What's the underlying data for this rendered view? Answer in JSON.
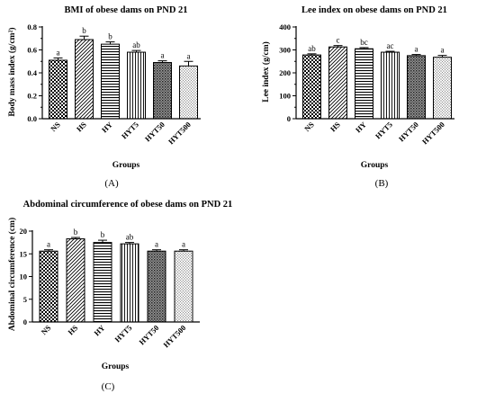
{
  "panels": [
    {
      "panel_label": "(A)"
    },
    {
      "panel_label": "(B)"
    },
    {
      "panel_label": "(C)"
    }
  ],
  "chart_data": [
    {
      "type": "bar",
      "title": "BMI of obese dams on PND 21",
      "xlabel": "Groups",
      "ylabel": "Body mass index (g/cm²)",
      "categories": [
        "NS",
        "HS",
        "HY",
        "HYT5",
        "HYT50",
        "HYT500"
      ],
      "values": [
        0.51,
        0.69,
        0.65,
        0.58,
        0.49,
        0.46
      ],
      "errors": [
        0.02,
        0.03,
        0.02,
        0.015,
        0.015,
        0.04
      ],
      "significance": [
        "a",
        "b",
        "b",
        "ab",
        "a",
        "a"
      ],
      "patterns": [
        "checker",
        "diagonal",
        "horizontal",
        "vertical",
        "grid",
        "dots"
      ],
      "ylim": [
        0,
        0.8
      ],
      "yticks": [
        0.0,
        0.2,
        0.4,
        0.6,
        0.8
      ],
      "ytick_labels": [
        "0.0",
        "0.2",
        "0.4",
        "0.6",
        "0.8"
      ],
      "ytick_minor": true
    },
    {
      "type": "bar",
      "title": "Lee index on obese dams on PND 21",
      "xlabel": "Groups",
      "ylabel": "Lee index (g/cm)",
      "categories": [
        "NS",
        "HS",
        "HY",
        "HYT5",
        "HYT50",
        "HYT500"
      ],
      "values": [
        278,
        313,
        305,
        290,
        275,
        268
      ],
      "errors": [
        5,
        6,
        5,
        4,
        5,
        8
      ],
      "significance": [
        "ab",
        "c",
        "bc",
        "ac",
        "a",
        "a"
      ],
      "patterns": [
        "checker",
        "diagonal",
        "horizontal",
        "vertical",
        "grid",
        "dots"
      ],
      "ylim": [
        0,
        400
      ],
      "yticks": [
        0,
        100,
        200,
        300,
        400
      ],
      "ytick_labels": [
        "0",
        "100",
        "200",
        "300",
        "400"
      ],
      "ytick_minor": true
    },
    {
      "type": "bar",
      "title": "Abdominal circumference of obese dams on PND 21",
      "xlabel": "Groups",
      "ylabel": "Abdominal circumference (cm)",
      "categories": [
        "NS",
        "HS",
        "HY",
        "HYT5",
        "HYT50",
        "HYT500"
      ],
      "values": [
        15.6,
        18.3,
        17.5,
        17.2,
        15.6,
        15.6
      ],
      "errors": [
        0.3,
        0.3,
        0.5,
        0.3,
        0.3,
        0.3
      ],
      "significance": [
        "a",
        "b",
        "b",
        "ab",
        "a",
        "a"
      ],
      "patterns": [
        "checker",
        "diagonal",
        "horizontal",
        "vertical",
        "grid",
        "dots"
      ],
      "ylim": [
        0,
        20
      ],
      "yticks": [
        0,
        5,
        10,
        15,
        20
      ],
      "ytick_labels": [
        "0",
        "5",
        "10",
        "15",
        "20"
      ],
      "ytick_minor": false
    }
  ]
}
